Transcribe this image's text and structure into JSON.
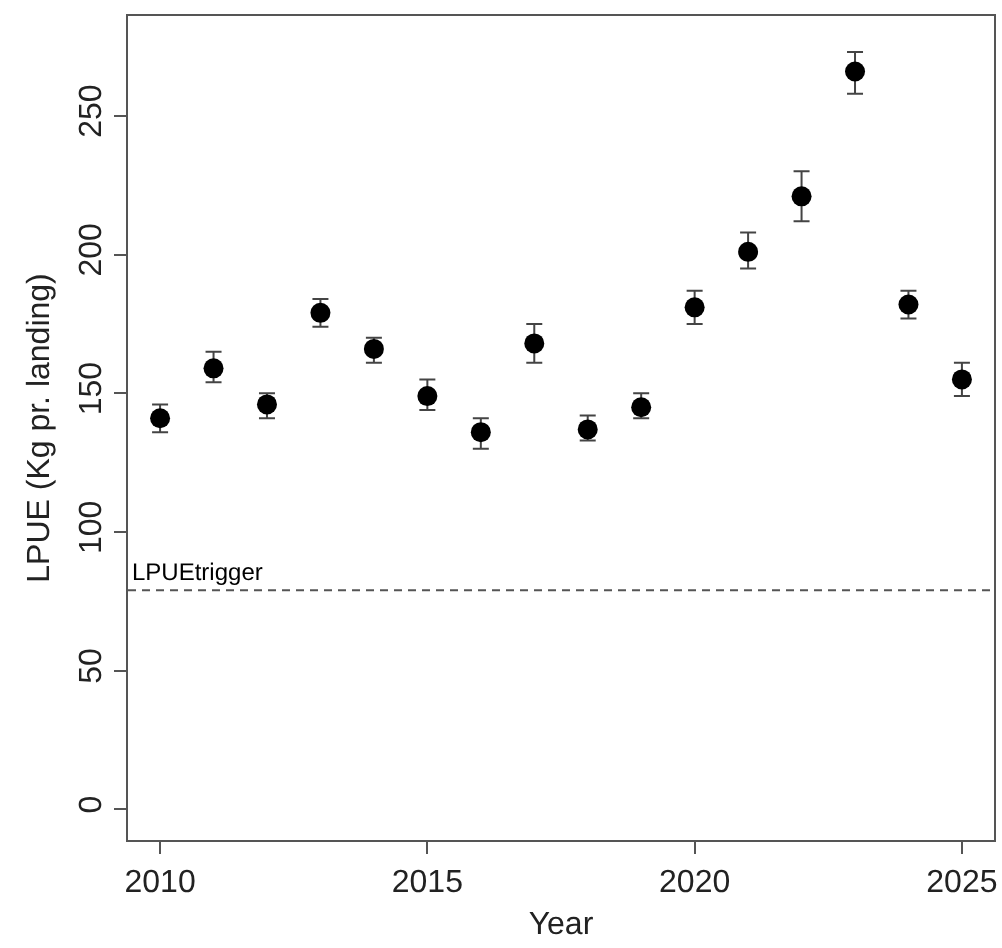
{
  "chart_data": {
    "type": "scatter",
    "xlabel": "Year",
    "ylabel": "LPUE (Kg pr. landing)",
    "x": [
      2010,
      2011,
      2012,
      2013,
      2014,
      2015,
      2016,
      2017,
      2018,
      2019,
      2020,
      2021,
      2022,
      2023,
      2024,
      2025
    ],
    "series": [
      {
        "color": "#000000",
        "values": [
          141,
          159,
          146,
          179,
          166,
          149,
          136,
          168,
          137,
          145,
          181,
          201,
          221,
          266,
          182,
          155
        ],
        "errors": [
          [
            136,
            146
          ],
          [
            154,
            165
          ],
          [
            141,
            150
          ],
          [
            174,
            184
          ],
          [
            161,
            170
          ],
          [
            144,
            155
          ],
          [
            130,
            141
          ],
          [
            161,
            175
          ],
          [
            133,
            142
          ],
          [
            141,
            150
          ],
          [
            175,
            187
          ],
          [
            195,
            208
          ],
          [
            212,
            230
          ],
          [
            258,
            273
          ],
          [
            177,
            187
          ],
          [
            149,
            161
          ]
        ]
      }
    ],
    "xlim": [
      2009.4,
      2025.6
    ],
    "xticks": [
      2010,
      2015,
      2020,
      2025
    ],
    "ylim": [
      -11,
      286
    ],
    "yticks": [
      0,
      50,
      100,
      150,
      200,
      250
    ],
    "ref_lines": [
      {
        "axis": "y",
        "value": 79,
        "label": "LPUEtrigger",
        "line_style": "dashed",
        "color": "#555555"
      }
    ],
    "grid": false,
    "marker": "circle"
  }
}
